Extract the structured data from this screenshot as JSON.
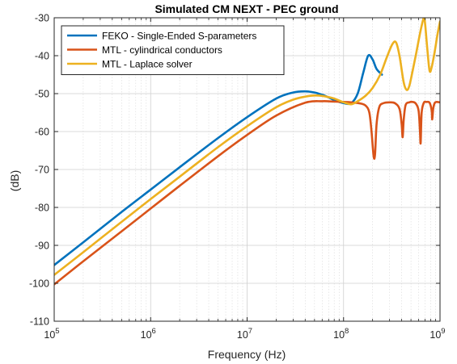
{
  "chart_data": {
    "type": "line",
    "title": "Simulated CM NEXT - PEC ground",
    "xlabel": "Frequency (Hz)",
    "ylabel": "(dB)",
    "xscale": "log",
    "xlim": [
      100000,
      1000000000
    ],
    "ylim": [
      -110,
      -30
    ],
    "grid": true,
    "legend_position": "top-left",
    "x_ticks": [
      {
        "value": 100000,
        "base": "10",
        "exp": "5"
      },
      {
        "value": 1000000,
        "base": "10",
        "exp": "6"
      },
      {
        "value": 10000000,
        "base": "10",
        "exp": "7"
      },
      {
        "value": 100000000,
        "base": "10",
        "exp": "8"
      },
      {
        "value": 1000000000,
        "base": "10",
        "exp": "9"
      }
    ],
    "y_ticks": [
      -30,
      -40,
      -50,
      -60,
      -70,
      -80,
      -90,
      -100,
      -110
    ],
    "series": [
      {
        "name": "FEKO - Single-Ended S-parameters",
        "color": "#0072BD",
        "x": [
          100000,
          200000,
          500000,
          1000000,
          2000000,
          5000000,
          10000000,
          20000000,
          30000000,
          40000000,
          50000000,
          60000000,
          70000000,
          80000000,
          100000000,
          120000000,
          140000000,
          160000000,
          180000000,
          200000000,
          220000000,
          250000000
        ],
        "y": [
          -95.2,
          -89.2,
          -81.2,
          -75.3,
          -69.4,
          -61.7,
          -56.2,
          -51.3,
          -49.7,
          -49.4,
          -49.7,
          -50.3,
          -51.0,
          -51.7,
          -52.5,
          -52.5,
          -50.0,
          -44.5,
          -40.0,
          -41.0,
          -43.5,
          -45.0
        ]
      },
      {
        "name": "MTL - cylindrical conductors",
        "color": "#D95319",
        "x": [
          100000,
          200000,
          500000,
          1000000,
          2000000,
          5000000,
          10000000,
          20000000,
          40000000,
          60000000,
          80000000,
          100000000,
          120000000,
          150000000,
          170000000,
          185000000,
          195000000,
          205000000,
          212000000,
          220000000,
          235000000,
          260000000,
          300000000,
          340000000,
          380000000,
          400000000,
          410000000,
          420000000,
          440000000,
          480000000,
          520000000,
          560000000,
          600000000,
          620000000,
          630000000,
          645000000,
          680000000,
          720000000,
          780000000,
          820000000,
          830000000,
          850000000,
          880000000,
          920000000,
          1000000000
        ],
        "y": [
          -100.3,
          -94.2,
          -86.3,
          -80.3,
          -74.3,
          -66.5,
          -60.9,
          -55.8,
          -52.4,
          -52.0,
          -52.1,
          -52.2,
          -52.3,
          -52.6,
          -53.2,
          -55.0,
          -60.0,
          -66.5,
          -66.0,
          -58.0,
          -53.5,
          -52.5,
          -52.3,
          -52.5,
          -54.0,
          -58.0,
          -61.5,
          -57.0,
          -53.0,
          -52.3,
          -52.2,
          -52.6,
          -54.5,
          -60.0,
          -63.0,
          -55.0,
          -52.4,
          -52.2,
          -52.4,
          -54.5,
          -56.8,
          -54.0,
          -52.5,
          -52.2,
          -52.3
        ]
      },
      {
        "name": "MTL - Laplace solver",
        "color": "#EDB120",
        "x": [
          100000,
          200000,
          500000,
          1000000,
          2000000,
          5000000,
          10000000,
          20000000,
          30000000,
          40000000,
          50000000,
          60000000,
          80000000,
          100000000,
          120000000,
          140000000,
          170000000,
          200000000,
          240000000,
          280000000,
          320000000,
          350000000,
          380000000,
          420000000,
          450000000,
          480000000,
          520000000,
          560000000,
          600000000,
          640000000,
          680000000,
          700000000,
          740000000,
          780000000,
          820000000,
          880000000,
          940000000,
          1000000000
        ],
        "y": [
          -97.8,
          -91.8,
          -83.8,
          -77.8,
          -71.9,
          -64.1,
          -58.6,
          -53.6,
          -51.6,
          -50.8,
          -50.5,
          -50.6,
          -51.3,
          -52.3,
          -52.8,
          -52.0,
          -50.5,
          -48.5,
          -45.0,
          -40.5,
          -37.0,
          -36.5,
          -40.0,
          -47.0,
          -49.0,
          -48.0,
          -44.0,
          -40.0,
          -36.0,
          -32.5,
          -30.0,
          -31.5,
          -38.5,
          -44.0,
          -43.0,
          -39.0,
          -34.5,
          -31.0
        ]
      }
    ]
  }
}
